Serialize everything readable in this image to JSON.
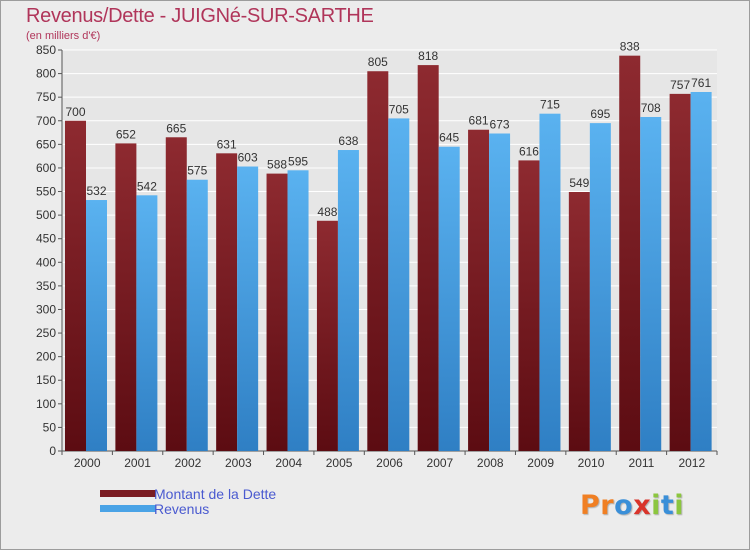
{
  "title": "Revenus/Dette - JUIGNé-SUR-SARTHE",
  "subtitle": "(en milliers d'€)",
  "colors": {
    "dette": "#7a1c22",
    "revenus": "#4aa3e6",
    "title": "#b0355a",
    "legend_text": "#4a5ad0"
  },
  "legend": [
    {
      "label": "Montant de la Dette",
      "color": "#7a1c22"
    },
    {
      "label": "Revenus",
      "color": "#4aa3e6"
    }
  ],
  "logo": {
    "text": "Proxiti",
    "letters": [
      {
        "char": "P",
        "color": "#f07f23"
      },
      {
        "char": "r",
        "color": "#f07f23"
      },
      {
        "char": "o",
        "color": "#3a8fd8"
      },
      {
        "char": "x",
        "color": "#d9342b"
      },
      {
        "char": "i",
        "color": "#8cc63f"
      },
      {
        "char": "t",
        "color": "#3a8fd8"
      },
      {
        "char": "i",
        "color": "#8cc63f"
      }
    ]
  },
  "chart_data": {
    "type": "bar",
    "categories": [
      "2000",
      "2001",
      "2002",
      "2003",
      "2004",
      "2005",
      "2006",
      "2007",
      "2008",
      "2009",
      "2010",
      "2011",
      "2012"
    ],
    "series": [
      {
        "name": "Montant de la Dette",
        "values": [
          700,
          652,
          665,
          631,
          588,
          488,
          805,
          818,
          681,
          616,
          549,
          838,
          757
        ]
      },
      {
        "name": "Revenus",
        "values": [
          532,
          542,
          575,
          603,
          595,
          638,
          705,
          645,
          673,
          715,
          695,
          708,
          761
        ]
      }
    ],
    "title": "Revenus/Dette - JUIGNé-SUR-SARTHE",
    "ylabel": "(en milliers d'€)",
    "ylim": [
      0,
      850
    ],
    "yticks": [
      0,
      50,
      100,
      150,
      200,
      250,
      300,
      350,
      400,
      450,
      500,
      550,
      600,
      650,
      700,
      750,
      800,
      850
    ],
    "grid": true,
    "data_labels": true,
    "legend_position": "bottom-left"
  }
}
